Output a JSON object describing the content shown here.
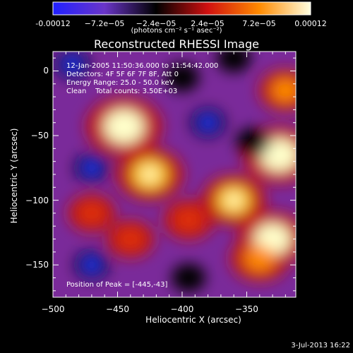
{
  "colorbar": {
    "ticks": [
      "-0.00012",
      "−7.2e−05",
      "−2.4e−05",
      "2.4e−05",
      "7.2e−05",
      "0.00012"
    ],
    "units": "(photons cm⁻² s⁻¹ asec⁻²)",
    "range": [
      -0.00012,
      0.00012
    ],
    "colors": [
      "#2020ff",
      "#6a35c8",
      "#000000",
      "#d01010",
      "#ff8a00",
      "#ffffe0"
    ]
  },
  "chart_data": {
    "type": "heatmap",
    "title": "Reconstructed RHESSI Image",
    "xlabel": "Heliocentric X (arcsec)",
    "ylabel": "Heliocentric Y (arcsec)",
    "xlim": [
      -500,
      -312
    ],
    "ylim": [
      -175,
      15
    ],
    "xticks": [
      -500,
      -450,
      -400,
      -350
    ],
    "yticks": [
      0,
      -50,
      -100,
      -150
    ],
    "annotations": {
      "time": "12-Jan-2005 11:50:36.000 to 11:54:42.000",
      "detectors": "Detectors: 4F 5F 6F 7F 8F, Att 0",
      "energy": "Energy Range: 25.0 - 50.0 keV",
      "method": "Clean    Total counts: 3.50E+03",
      "peak": "Position of Peak = [-445,-43]"
    },
    "peak": {
      "x": -445,
      "y": -43
    },
    "bright_sources": [
      {
        "x": -445,
        "y": -43,
        "level": 1.0
      },
      {
        "x": -325,
        "y": -65,
        "level": 0.95
      },
      {
        "x": -330,
        "y": -130,
        "level": 0.9
      },
      {
        "x": -425,
        "y": -80,
        "level": 0.85
      },
      {
        "x": -360,
        "y": -100,
        "level": 0.8
      },
      {
        "x": -395,
        "y": -115,
        "level": 0.55
      },
      {
        "x": -340,
        "y": -145,
        "level": 0.7
      },
      {
        "x": -470,
        "y": -110,
        "level": 0.5
      },
      {
        "x": -320,
        "y": -15,
        "level": 0.6
      },
      {
        "x": -440,
        "y": -130,
        "level": 0.5
      }
    ],
    "dark_sources": [
      {
        "x": -485,
        "y": 5,
        "level": -0.8
      },
      {
        "x": -380,
        "y": -40,
        "level": -1.0
      },
      {
        "x": -470,
        "y": -75,
        "level": -0.7
      },
      {
        "x": -400,
        "y": -5,
        "level": -0.6
      },
      {
        "x": -345,
        "y": -55,
        "level": -0.6
      },
      {
        "x": -470,
        "y": -150,
        "level": -0.7
      },
      {
        "x": -395,
        "y": -160,
        "level": -0.6
      },
      {
        "x": -360,
        "y": 10,
        "level": -0.5
      }
    ]
  },
  "date": "3-Jul-2013 16:22"
}
